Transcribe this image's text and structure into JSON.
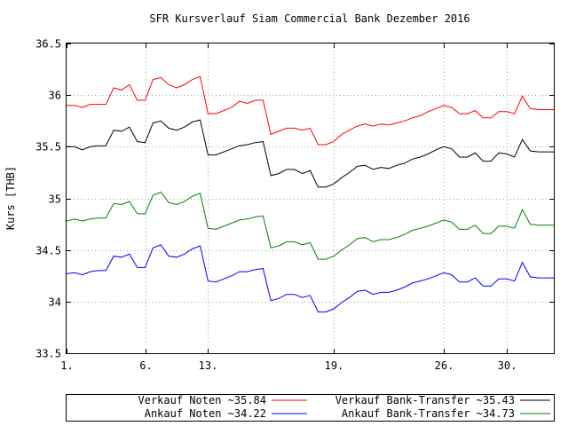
{
  "chart_data": {
    "type": "line",
    "title": "SFR Kursverlauf Siam Commercial Bank Dezember 2016",
    "ylabel": "Kurs [THB]",
    "xlabel": "",
    "xlim": [
      1,
      32
    ],
    "ylim": [
      33.5,
      36.5
    ],
    "yticks": [
      "33.5",
      "34",
      "34.5",
      "35",
      "35.5",
      "36",
      "36.5"
    ],
    "yticks_values": [
      33.5,
      34,
      34.5,
      35,
      35.5,
      36,
      36.5
    ],
    "xticks": [
      {
        "value": 1,
        "label": "1."
      },
      {
        "value": 6,
        "label": "6."
      },
      {
        "value": 10,
        "label": "13."
      },
      {
        "value": 18,
        "label": "19."
      },
      {
        "value": 25,
        "label": "26."
      },
      {
        "value": 29,
        "label": "30."
      }
    ],
    "grid": true,
    "legend_placement": "bottom",
    "x": [
      1,
      1.5,
      2,
      2.5,
      3,
      3.5,
      4,
      4.5,
      5,
      5.5,
      6,
      6.5,
      7,
      7.5,
      8,
      8.5,
      9,
      9.5,
      10,
      10.5,
      11,
      11.5,
      12,
      12.5,
      13,
      13.5,
      14,
      14.5,
      15,
      15.5,
      16,
      16.5,
      17,
      17.5,
      18,
      18.5,
      19,
      19.5,
      20,
      20.5,
      21,
      21.5,
      22,
      22.5,
      23,
      23.5,
      24,
      24.5,
      25,
      25.5,
      26,
      26.5,
      27,
      27.5,
      28,
      28.5,
      29,
      29.5,
      30,
      30.5,
      31,
      31.5,
      32
    ],
    "series": [
      {
        "name": "Verkauf Noten ~35.84",
        "color": "#ff0000",
        "values": [
          35.9,
          35.9,
          35.88,
          35.91,
          35.91,
          35.91,
          36.07,
          36.05,
          36.1,
          35.95,
          35.95,
          36.15,
          36.17,
          36.1,
          36.07,
          36.1,
          36.15,
          36.18,
          35.82,
          35.82,
          35.85,
          35.88,
          35.94,
          35.92,
          35.95,
          35.95,
          35.62,
          35.65,
          35.68,
          35.68,
          35.66,
          35.68,
          35.52,
          35.52,
          35.55,
          35.62,
          35.66,
          35.7,
          35.72,
          35.7,
          35.72,
          35.71,
          35.73,
          35.75,
          35.78,
          35.8,
          35.84,
          35.87,
          35.9,
          35.88,
          35.82,
          35.82,
          35.85,
          35.78,
          35.78,
          35.84,
          35.84,
          35.82,
          35.99,
          35.87,
          35.86,
          35.86,
          35.86
        ]
      },
      {
        "name": "Verkauf Bank-Transfer ~35.43",
        "color": "#000000",
        "values": [
          35.5,
          35.5,
          35.47,
          35.5,
          35.51,
          35.51,
          35.66,
          35.65,
          35.69,
          35.55,
          35.54,
          35.73,
          35.75,
          35.68,
          35.66,
          35.69,
          35.74,
          35.76,
          35.42,
          35.42,
          35.45,
          35.48,
          35.51,
          35.52,
          35.54,
          35.55,
          35.22,
          35.24,
          35.28,
          35.28,
          35.24,
          35.27,
          35.11,
          35.11,
          35.14,
          35.2,
          35.25,
          35.31,
          35.32,
          35.28,
          35.3,
          35.29,
          35.32,
          35.34,
          35.38,
          35.4,
          35.43,
          35.47,
          35.5,
          35.48,
          35.4,
          35.4,
          35.44,
          35.36,
          35.36,
          35.44,
          35.43,
          35.4,
          35.57,
          35.46,
          35.45,
          35.45,
          35.45
        ]
      },
      {
        "name": "Ankauf Noten ~34.22",
        "color": "#0000ff",
        "values": [
          34.27,
          34.28,
          34.26,
          34.29,
          34.3,
          34.3,
          34.44,
          34.43,
          34.46,
          34.33,
          34.33,
          34.52,
          34.55,
          34.44,
          34.43,
          34.46,
          34.51,
          34.54,
          34.2,
          34.19,
          34.22,
          34.25,
          34.29,
          34.29,
          34.31,
          34.32,
          34.01,
          34.03,
          34.07,
          34.07,
          34.04,
          34.06,
          33.9,
          33.9,
          33.93,
          33.99,
          34.04,
          34.1,
          34.11,
          34.07,
          34.09,
          34.09,
          34.11,
          34.14,
          34.18,
          34.2,
          34.22,
          34.25,
          34.28,
          34.26,
          34.19,
          34.19,
          34.23,
          34.15,
          34.15,
          34.22,
          34.22,
          34.2,
          34.38,
          34.24,
          34.23,
          34.23,
          34.23
        ]
      },
      {
        "name": "Ankauf Bank-Transfer ~34.73",
        "color": "#008000",
        "values": [
          34.78,
          34.8,
          34.78,
          34.8,
          34.81,
          34.81,
          34.95,
          34.94,
          34.97,
          34.85,
          34.85,
          35.03,
          35.06,
          34.96,
          34.94,
          34.97,
          35.02,
          35.05,
          34.71,
          34.7,
          34.73,
          34.76,
          34.79,
          34.8,
          34.82,
          34.83,
          34.52,
          34.54,
          34.58,
          34.58,
          34.55,
          34.57,
          34.41,
          34.41,
          34.44,
          34.5,
          34.55,
          34.61,
          34.62,
          34.58,
          34.6,
          34.6,
          34.62,
          34.65,
          34.69,
          34.71,
          34.73,
          34.76,
          34.79,
          34.77,
          34.7,
          34.7,
          34.74,
          34.66,
          34.66,
          34.73,
          34.73,
          34.71,
          34.89,
          34.75,
          34.74,
          34.74,
          34.74
        ]
      }
    ]
  }
}
